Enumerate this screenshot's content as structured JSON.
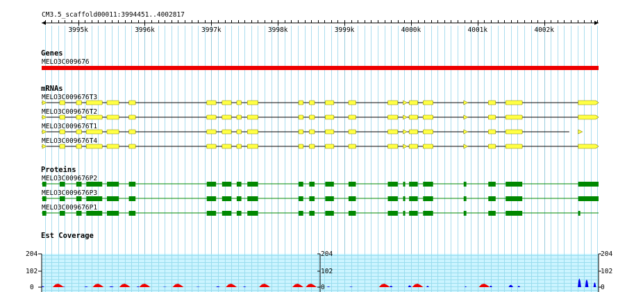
{
  "ruler": {
    "label": "CM3.5_scaffold00011:3994451..4002817",
    "start": 3994451,
    "end": 4002817,
    "major_ticks": [
      "3995k",
      "3996k",
      "3997k",
      "3998k",
      "3999k",
      "4000k",
      "4001k",
      "4002k"
    ]
  },
  "colors": {
    "gene": "#ee0000",
    "mrna": "#ffff44",
    "mrna_stroke": "#888800",
    "protein": "#008800",
    "grid": "#aaddee",
    "coverage_bg": "#ccf4ff",
    "cov_blue": "#0000ee",
    "cov_red": "#ee0000"
  },
  "tracks": {
    "genes": {
      "title": "Genes",
      "items": [
        {
          "name": "MELO3C009676",
          "start": 3994451,
          "end": 4002817
        }
      ]
    },
    "mrnas": {
      "title": "mRNAs",
      "items": [
        {
          "name": "MELO3C009676T3",
          "tail_end": 4002817
        },
        {
          "name": "MELO3C009676T2",
          "tail_end": 4002817
        },
        {
          "name": "MELO3C009676T1",
          "tail_end": 4002377
        },
        {
          "name": "MELO3C009676T4",
          "tail_end": 4002817
        }
      ]
    },
    "proteins": {
      "title": "Proteins",
      "items": [
        {
          "name": "MELO3C009676P2"
        },
        {
          "name": "MELO3C009676P3"
        },
        {
          "name": "MELO3C009676P1"
        }
      ]
    },
    "coverage": {
      "title": "Est Coverage",
      "max": 204,
      "mid": 102,
      "min": 0,
      "axis_labels": [
        "204",
        "102",
        "0"
      ]
    }
  },
  "exons": [
    [
      3994461,
      3994521
    ],
    [
      3994721,
      3994801
    ],
    [
      3994971,
      3995051
    ],
    [
      3995121,
      3995361
    ],
    [
      3995431,
      3995611
    ],
    [
      3995761,
      3995861
    ],
    [
      3996931,
      3997071
    ],
    [
      3997161,
      3997301
    ],
    [
      3997381,
      3997451
    ],
    [
      3997541,
      3997701
    ],
    [
      3998311,
      3998381
    ],
    [
      3998471,
      3998551
    ],
    [
      3998711,
      3998841
    ],
    [
      3999061,
      3999171
    ],
    [
      3999651,
      3999801
    ],
    [
      3999881,
      3999901
    ],
    [
      3999971,
      4000101
    ],
    [
      4000181,
      4000331
    ],
    [
      4000791,
      4000831
    ],
    [
      4001161,
      4001271
    ],
    [
      4001421,
      4001671
    ]
  ],
  "last_exon": [
    4002511,
    4002817
  ],
  "coverage_peaks": [
    {
      "pos": 3994470,
      "h": 6,
      "w": 40
    },
    {
      "pos": 3994780,
      "h": 3,
      "w": 50
    },
    {
      "pos": 3995120,
      "h": 4,
      "w": 60
    },
    {
      "pos": 3995500,
      "h": 5,
      "w": 70
    },
    {
      "pos": 3995900,
      "h": 4,
      "w": 50
    },
    {
      "pos": 3996300,
      "h": 2,
      "w": 60
    },
    {
      "pos": 3996800,
      "h": 2,
      "w": 60
    },
    {
      "pos": 3997100,
      "h": 5,
      "w": 60
    },
    {
      "pos": 3997500,
      "h": 4,
      "w": 50
    },
    {
      "pos": 3997800,
      "h": 3,
      "w": 50
    },
    {
      "pos": 3998320,
      "h": 4,
      "w": 30
    },
    {
      "pos": 3998500,
      "h": 5,
      "w": 50
    },
    {
      "pos": 3998760,
      "h": 4,
      "w": 50
    },
    {
      "pos": 3999100,
      "h": 3,
      "w": 50
    },
    {
      "pos": 3999700,
      "h": 8,
      "w": 50
    },
    {
      "pos": 3999980,
      "h": 11,
      "w": 50
    },
    {
      "pos": 4000250,
      "h": 8,
      "w": 40
    },
    {
      "pos": 4000820,
      "h": 5,
      "w": 30
    },
    {
      "pos": 4001200,
      "h": 9,
      "w": 40
    },
    {
      "pos": 4001500,
      "h": 14,
      "w": 70
    },
    {
      "pos": 4001620,
      "h": 8,
      "w": 40
    },
    {
      "pos": 4002530,
      "h": 54,
      "w": 50
    },
    {
      "pos": 4002640,
      "h": 48,
      "w": 50
    },
    {
      "pos": 4002760,
      "h": 30,
      "w": 40
    }
  ],
  "coverage_red_marks": [
    3994700,
    3995300,
    3995700,
    3996000,
    3996500,
    3997300,
    3997800,
    3998300,
    3998500,
    3999600,
    4000100,
    4001100
  ]
}
